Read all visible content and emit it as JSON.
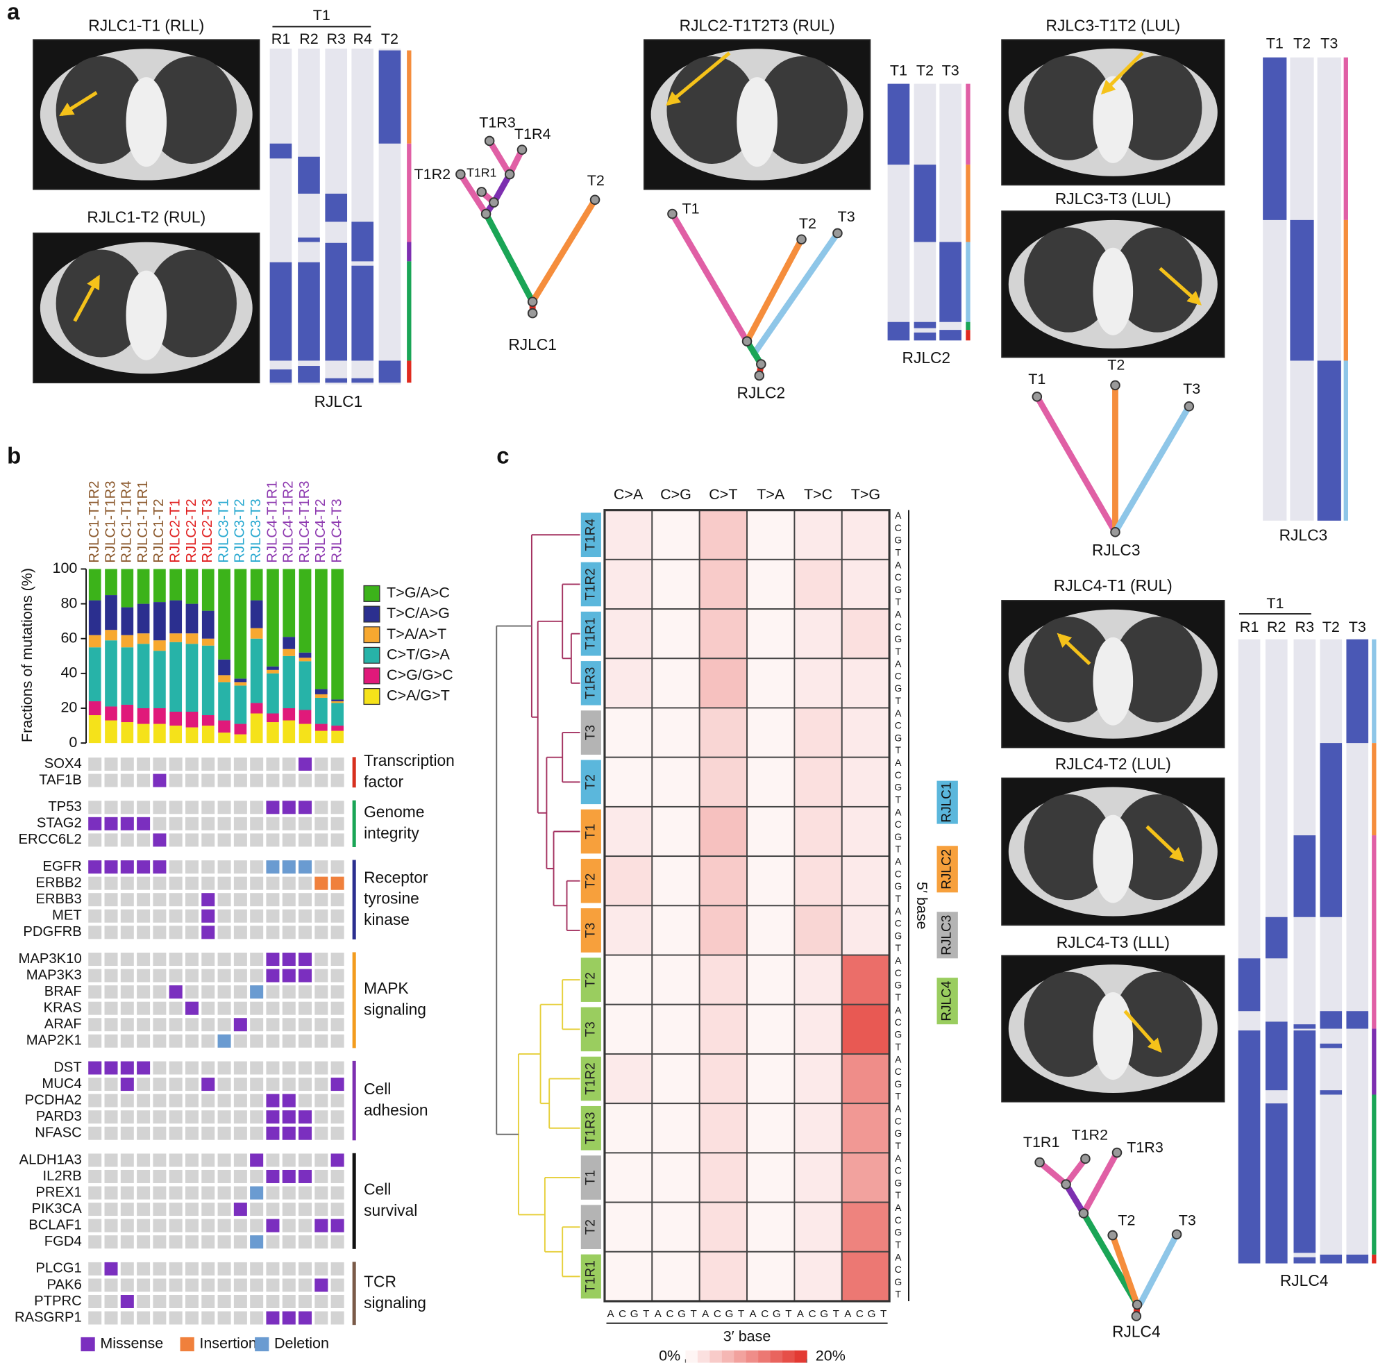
{
  "figure_labels": {
    "a": "a",
    "b": "b",
    "c": "c"
  },
  "panel_a": {
    "scan_titles": [
      "RJLC1-T1 (RLL)",
      "RJLC1-T2 (RUL)",
      "RJLC2-T1T2T3 (RUL)",
      "RJLC3-T1T2 (LUL)",
      "RJLC3-T3 (LUL)",
      "RJLC4-T1 (RUL)",
      "RJLC4-T2 (LUL)",
      "RJLC4-T3 (LLL)"
    ],
    "patients": [
      {
        "name": "RJLC1",
        "region_header": "T1",
        "columns": [
          "R1",
          "R2",
          "R3",
          "R4",
          "T2"
        ],
        "tree": [
          "T1R3",
          "T1R4",
          "T1R2",
          "T1R1",
          "T2",
          "RJLC1"
        ]
      },
      {
        "name": "RJLC2",
        "columns": [
          "T1",
          "T2",
          "T3"
        ],
        "tree": [
          "T1",
          "T2",
          "T3",
          "RJLC2"
        ]
      },
      {
        "name": "RJLC3",
        "columns": [
          "T1",
          "T2",
          "T3"
        ],
        "tree": [
          "T1",
          "T2",
          "T3",
          "RJLC3"
        ]
      },
      {
        "name": "RJLC4",
        "region_header": "T1",
        "columns": [
          "R1",
          "R2",
          "R3",
          "T2",
          "T3"
        ],
        "tree": [
          "T1R1",
          "T1R2",
          "T1R3",
          "T2",
          "T3",
          "RJLC4"
        ]
      }
    ]
  },
  "chart_data": {
    "type": "stacked_bar",
    "ylabel": "Fractions of mutations (%)",
    "ylim": [
      0,
      100
    ],
    "yticks": [
      0,
      20,
      40,
      60,
      80,
      100
    ],
    "categories": [
      "RJLC1-T1R2",
      "RJLC1-T1R3",
      "RJLC1-T1R4",
      "RJLC1-T1R1",
      "RJLC1-T2",
      "RJLC2-T1",
      "RJLC2-T2",
      "RJLC2-T3",
      "RJLC3-T1",
      "RJLC3-T2",
      "RJLC3-T3",
      "RJLC4-T1R1",
      "RJLC4-T1R2",
      "RJLC4-T1R3",
      "RJLC4-T2",
      "RJLC4-T3"
    ],
    "category_colors": [
      "#8c5a2e",
      "#8c5a2e",
      "#8c5a2e",
      "#8c5a2e",
      "#8c5a2e",
      "#e02020",
      "#e02020",
      "#e02020",
      "#29a9d0",
      "#29a9d0",
      "#29a9d0",
      "#8e3ab0",
      "#8e3ab0",
      "#8e3ab0",
      "#8e3ab0",
      "#8e3ab0"
    ],
    "series": [
      {
        "name": "C>A/G>T",
        "color": "#f5e21a",
        "values": [
          16,
          13,
          12,
          11,
          11,
          10,
          9,
          10,
          6,
          5,
          17,
          12,
          13,
          11,
          7,
          7
        ]
      },
      {
        "name": "C>G/G>C",
        "color": "#e0197a",
        "values": [
          8,
          8,
          10,
          9,
          9,
          8,
          9,
          6,
          7,
          6,
          6,
          5,
          7,
          8,
          4,
          3
        ]
      },
      {
        "name": "C>T/G>A",
        "color": "#27b3a8",
        "values": [
          31,
          38,
          33,
          37,
          33,
          40,
          39,
          40,
          22,
          22,
          37,
          23,
          30,
          28,
          15,
          13
        ]
      },
      {
        "name": "T>A/A>T",
        "color": "#f7a830",
        "values": [
          7,
          6,
          7,
          6,
          6,
          5,
          6,
          4,
          4,
          2,
          6,
          2,
          4,
          2,
          2,
          1
        ]
      },
      {
        "name": "T>C/A>G",
        "color": "#2b2f8f",
        "values": [
          20,
          20,
          16,
          17,
          22,
          19,
          17,
          16,
          9,
          2,
          16,
          2,
          7,
          3,
          3,
          1
        ]
      },
      {
        "name": "T>G/A>C",
        "color": "#3cb31a",
        "values": [
          18,
          15,
          22,
          20,
          19,
          18,
          20,
          24,
          52,
          63,
          18,
          56,
          39,
          48,
          69,
          75
        ]
      }
    ]
  },
  "oncoprint": {
    "mutation_types": [
      {
        "name": "Missense",
        "color": "#7b2fbf"
      },
      {
        "name": "Insertion",
        "color": "#f0803c"
      },
      {
        "name": "Deletion",
        "color": "#6a9bd1"
      }
    ],
    "groups": [
      {
        "label": [
          "Transcription",
          "factor"
        ],
        "color": "#d7301f",
        "genes": [
          {
            "name": "SOX4",
            "calls": [
              [
                13,
                "Missense"
              ]
            ]
          },
          {
            "name": "TAF1B",
            "calls": [
              [
                4,
                "Missense"
              ]
            ]
          }
        ]
      },
      {
        "label": [
          "Genome",
          "integrity"
        ],
        "color": "#1aa556",
        "genes": [
          {
            "name": "TP53",
            "calls": [
              [
                11,
                "Missense"
              ],
              [
                12,
                "Missense"
              ],
              [
                13,
                "Missense"
              ]
            ]
          },
          {
            "name": "STAG2",
            "calls": [
              [
                0,
                "Missense"
              ],
              [
                1,
                "Missense"
              ],
              [
                2,
                "Missense"
              ],
              [
                3,
                "Missense"
              ]
            ]
          },
          {
            "name": "ERCC6L2",
            "calls": [
              [
                4,
                "Missense"
              ]
            ]
          }
        ]
      },
      {
        "label": [
          "Receptor",
          "tyrosine",
          "kinase"
        ],
        "color": "#2b2f8f",
        "genes": [
          {
            "name": "EGFR",
            "calls": [
              [
                0,
                "Missense"
              ],
              [
                1,
                "Missense"
              ],
              [
                2,
                "Missense"
              ],
              [
                3,
                "Missense"
              ],
              [
                4,
                "Missense"
              ],
              [
                11,
                "Deletion"
              ],
              [
                12,
                "Deletion"
              ],
              [
                13,
                "Deletion"
              ]
            ]
          },
          {
            "name": "ERBB2",
            "calls": [
              [
                14,
                "Insertion"
              ],
              [
                15,
                "Insertion"
              ]
            ]
          },
          {
            "name": "ERBB3",
            "calls": [
              [
                7,
                "Missense"
              ]
            ]
          },
          {
            "name": "MET",
            "calls": [
              [
                7,
                "Missense"
              ]
            ]
          },
          {
            "name": "PDGFRB",
            "calls": [
              [
                7,
                "Missense"
              ]
            ]
          }
        ]
      },
      {
        "label": [
          "MAPK",
          "signaling"
        ],
        "color": "#f39c1e",
        "genes": [
          {
            "name": "MAP3K10",
            "calls": [
              [
                11,
                "Missense"
              ],
              [
                12,
                "Missense"
              ],
              [
                13,
                "Missense"
              ]
            ]
          },
          {
            "name": "MAP3K3",
            "calls": [
              [
                11,
                "Missense"
              ],
              [
                12,
                "Missense"
              ],
              [
                13,
                "Missense"
              ]
            ]
          },
          {
            "name": "BRAF",
            "calls": [
              [
                5,
                "Missense"
              ],
              [
                10,
                "Deletion"
              ]
            ]
          },
          {
            "name": "KRAS",
            "calls": [
              [
                6,
                "Missense"
              ]
            ]
          },
          {
            "name": "ARAF",
            "calls": [
              [
                9,
                "Missense"
              ]
            ]
          },
          {
            "name": "MAP2K1",
            "calls": [
              [
                8,
                "Deletion"
              ]
            ]
          }
        ]
      },
      {
        "label": [
          "Cell",
          "adhesion"
        ],
        "color": "#7d2fb0",
        "genes": [
          {
            "name": "DST",
            "calls": [
              [
                0,
                "Missense"
              ],
              [
                1,
                "Missense"
              ],
              [
                2,
                "Missense"
              ],
              [
                3,
                "Missense"
              ]
            ]
          },
          {
            "name": "MUC4",
            "calls": [
              [
                2,
                "Missense"
              ],
              [
                7,
                "Missense"
              ],
              [
                15,
                "Missense"
              ]
            ]
          },
          {
            "name": "PCDHA2",
            "calls": [
              [
                11,
                "Missense"
              ],
              [
                12,
                "Missense"
              ]
            ]
          },
          {
            "name": "PARD3",
            "calls": [
              [
                11,
                "Missense"
              ],
              [
                12,
                "Missense"
              ],
              [
                13,
                "Missense"
              ]
            ]
          },
          {
            "name": "NFASC",
            "calls": [
              [
                11,
                "Missense"
              ],
              [
                12,
                "Missense"
              ],
              [
                13,
                "Missense"
              ]
            ]
          }
        ]
      },
      {
        "label": [
          "Cell",
          "survival"
        ],
        "color": "#111111",
        "genes": [
          {
            "name": "ALDH1A3",
            "calls": [
              [
                10,
                "Missense"
              ],
              [
                15,
                "Missense"
              ]
            ]
          },
          {
            "name": "IL2RB",
            "calls": [
              [
                11,
                "Missense"
              ],
              [
                12,
                "Missense"
              ],
              [
                13,
                "Missense"
              ]
            ]
          },
          {
            "name": "PREX1",
            "calls": [
              [
                10,
                "Deletion"
              ]
            ]
          },
          {
            "name": "PIK3CA",
            "calls": [
              [
                9,
                "Missense"
              ]
            ]
          },
          {
            "name": "BCLAF1",
            "calls": [
              [
                11,
                "Missense"
              ],
              [
                14,
                "Missense"
              ],
              [
                15,
                "Missense"
              ]
            ]
          },
          {
            "name": "FGD4",
            "calls": [
              [
                10,
                "Deletion"
              ]
            ]
          }
        ]
      },
      {
        "label": [
          "TCR",
          "signaling"
        ],
        "color": "#7a5a48",
        "genes": [
          {
            "name": "PLCG1",
            "calls": [
              [
                1,
                "Missense"
              ]
            ]
          },
          {
            "name": "PAK6",
            "calls": [
              [
                14,
                "Missense"
              ]
            ]
          },
          {
            "name": "PTPRC",
            "calls": [
              [
                2,
                "Missense"
              ]
            ]
          },
          {
            "name": "RASGRP1",
            "calls": [
              [
                11,
                "Missense"
              ],
              [
                12,
                "Missense"
              ],
              [
                13,
                "Missense"
              ]
            ]
          }
        ]
      }
    ]
  },
  "panel_c": {
    "substitutions": [
      "C>A",
      "C>G",
      "C>T",
      "T>A",
      "T>C",
      "T>G"
    ],
    "bases": [
      "A",
      "C",
      "G",
      "T"
    ],
    "five_prime_label": "5′ base",
    "three_prime_label": "3′ base",
    "colorbar_ticks": [
      {
        "value": 0,
        "label": "0%"
      },
      {
        "value": 20,
        "label": "20%"
      }
    ],
    "patients": [
      {
        "name": "RJLC1",
        "color": "#5bb7dc"
      },
      {
        "name": "RJLC2",
        "color": "#f7a03c"
      },
      {
        "name": "RJLC3",
        "color": "#b4b4b4"
      },
      {
        "name": "RJLC4",
        "color": "#9acd5f"
      }
    ],
    "rows": [
      {
        "label": "T1R4",
        "patient": "RJLC1",
        "values": [
          2,
          1,
          5,
          1,
          2,
          2
        ]
      },
      {
        "label": "T1R2",
        "patient": "RJLC1",
        "values": [
          2,
          1,
          5,
          1,
          3,
          2
        ]
      },
      {
        "label": "T1R1",
        "patient": "RJLC1",
        "values": [
          2,
          1,
          5,
          1,
          2,
          3
        ]
      },
      {
        "label": "T1R3",
        "patient": "RJLC1",
        "values": [
          2,
          1,
          6,
          1,
          2,
          2
        ]
      },
      {
        "label": "T3",
        "patient": "RJLC3",
        "values": [
          1,
          1,
          4,
          1,
          3,
          2
        ]
      },
      {
        "label": "T2",
        "patient": "RJLC1",
        "values": [
          1,
          1,
          4,
          1,
          3,
          2
        ]
      },
      {
        "label": "T1",
        "patient": "RJLC2",
        "values": [
          2,
          1,
          6,
          1,
          3,
          2
        ]
      },
      {
        "label": "T2",
        "patient": "RJLC2",
        "values": [
          3,
          1,
          5,
          1,
          3,
          2
        ]
      },
      {
        "label": "T3",
        "patient": "RJLC2",
        "values": [
          2,
          1,
          5,
          1,
          4,
          2
        ]
      },
      {
        "label": "T2",
        "patient": "RJLC4",
        "values": [
          1,
          1,
          3,
          1,
          2,
          14
        ]
      },
      {
        "label": "T3",
        "patient": "RJLC4",
        "values": [
          1,
          1,
          3,
          1,
          2,
          16
        ]
      },
      {
        "label": "T1R2",
        "patient": "RJLC4",
        "values": [
          2,
          1,
          3,
          1,
          2,
          11
        ]
      },
      {
        "label": "T1R3",
        "patient": "RJLC4",
        "values": [
          1,
          1,
          3,
          1,
          2,
          10
        ]
      },
      {
        "label": "T1",
        "patient": "RJLC3",
        "values": [
          1,
          1,
          3,
          1,
          2,
          9
        ]
      },
      {
        "label": "T2",
        "patient": "RJLC3",
        "values": [
          1,
          1,
          3,
          1,
          2,
          12
        ]
      },
      {
        "label": "T1R1",
        "patient": "RJLC4",
        "values": [
          1,
          1,
          3,
          1,
          2,
          13
        ]
      }
    ]
  }
}
